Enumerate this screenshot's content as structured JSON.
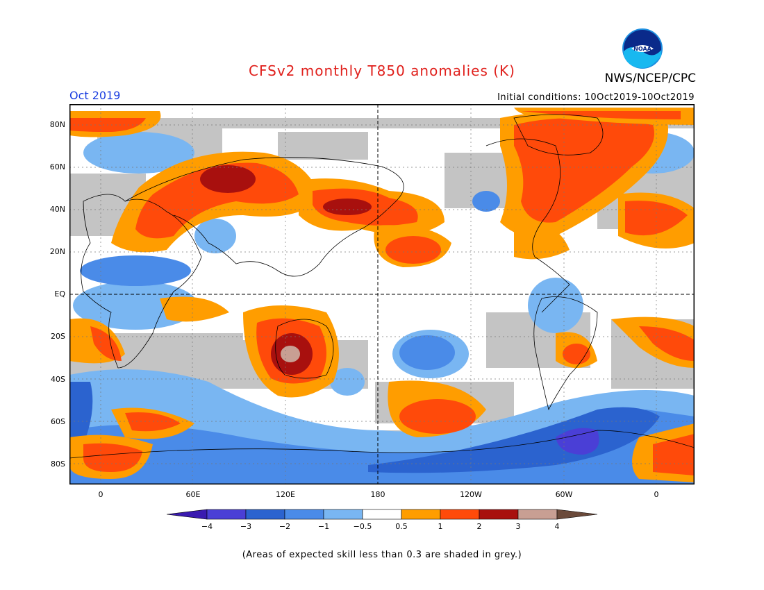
{
  "title": "CFSv2 monthly T850 anomalies (K)",
  "agency": "NWS/NCEP/CPC",
  "logo_text": "NOAA",
  "month": "Oct 2019",
  "initial_conditions": "Initial conditions: 10Oct2019-10Oct2019",
  "lat_labels": [
    "80N",
    "60N",
    "40N",
    "20N",
    "EQ",
    "20S",
    "40S",
    "60S",
    "80S"
  ],
  "lon_labels": [
    "0",
    "60E",
    "120E",
    "180",
    "120W",
    "60W",
    "0"
  ],
  "colorbar": {
    "labels": [
      "−4",
      "−3",
      "−2",
      "−1",
      "−0.5",
      "0.5",
      "1",
      "2",
      "3",
      "4"
    ],
    "colors": [
      "#3a1ab0",
      "#4a3fd6",
      "#2b63cf",
      "#4a8be8",
      "#79b6f2",
      "#ffffff",
      "#ff9d00",
      "#ff4a0a",
      "#a8100e",
      "#c89f93",
      "#6b4a3a"
    ]
  },
  "footnote": "(Areas of expected skill less than 0.3 are shaded in grey.)",
  "colors": {
    "title": "#e0201c",
    "month": "#1a3ee0",
    "grey_mask": "#c4c4c4"
  }
}
